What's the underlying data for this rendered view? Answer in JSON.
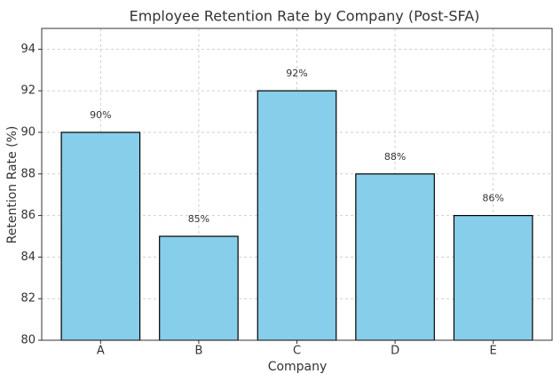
{
  "chart_data": {
    "type": "bar",
    "title": "Employee Retention Rate by Company (Post-SFA)",
    "x_label": "Company",
    "y_label": "Retention Rate (%)",
    "categories": [
      "A",
      "B",
      "C",
      "D",
      "E"
    ],
    "values": [
      90,
      85,
      92,
      88,
      86
    ],
    "value_labels": [
      "90%",
      "85%",
      "92%",
      "88%",
      "86%"
    ],
    "color": "#87ceeb",
    "edge_color": "#000000",
    "ylim": [
      80,
      95
    ],
    "yticks": [
      80,
      82,
      84,
      86,
      88,
      90,
      92,
      94
    ],
    "grid": true
  }
}
